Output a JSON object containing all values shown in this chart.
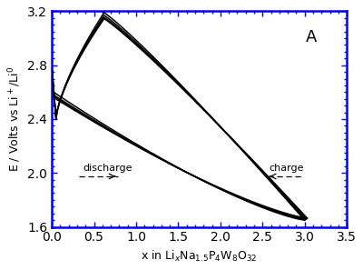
{
  "title": "A",
  "xlabel": "x in Li$_x$Na$_{1.5}$P$_4$W$_8$O$_{32}$",
  "ylabel": "E / Volts vs Li$^+$/Li$^0$",
  "xlim": [
    0,
    3.5
  ],
  "ylim": [
    1.6,
    3.2
  ],
  "xticks": [
    0,
    0.5,
    1.0,
    1.5,
    2.0,
    2.5,
    3.0,
    3.5
  ],
  "yticks": [
    1.6,
    2.0,
    2.4,
    2.8,
    3.2
  ],
  "border_color": "blue",
  "line_color": "black",
  "background_color": "white",
  "discharge_label": "discharge",
  "charge_label": "charge",
  "n_curves": 4,
  "lw": 1.1
}
